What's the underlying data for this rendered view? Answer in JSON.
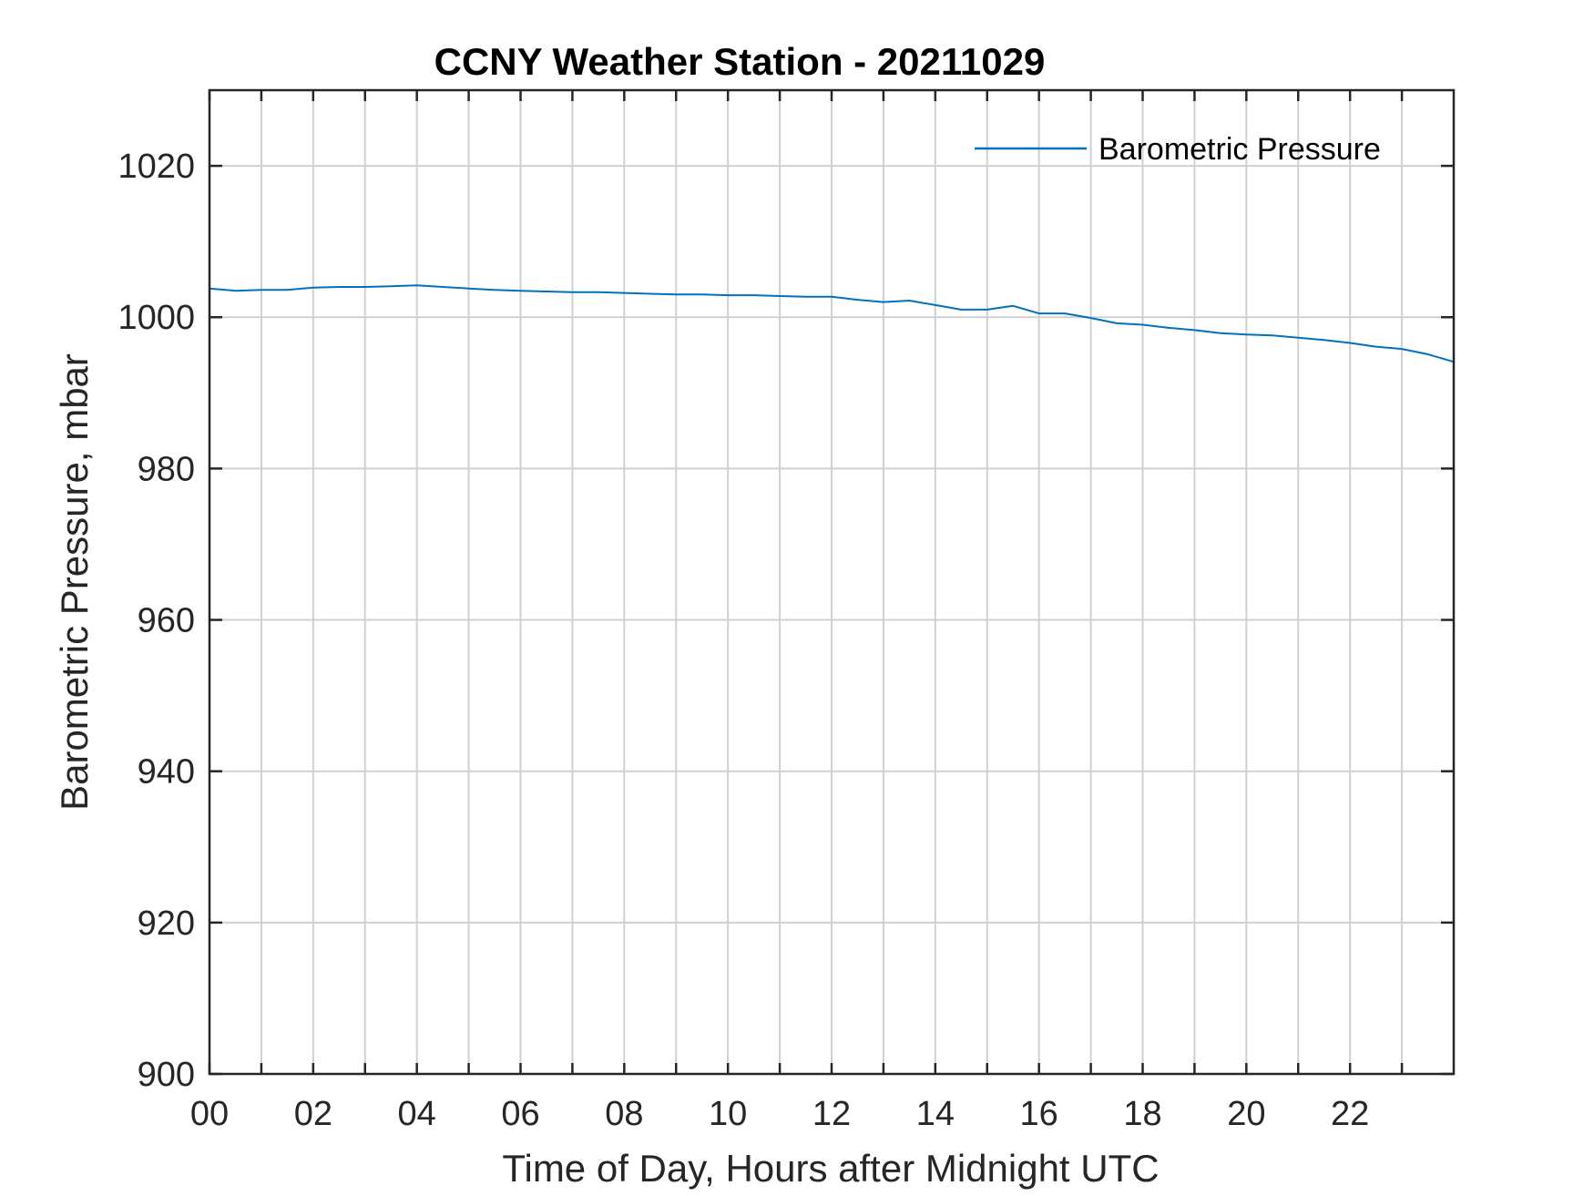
{
  "chart_data": {
    "type": "line",
    "title": "CCNY Weather Station - 20211029",
    "xlabel": "Time of Day, Hours after Midnight UTC",
    "ylabel": "Barometric Pressure, mbar",
    "xlim": [
      0,
      24
    ],
    "ylim": [
      900,
      1030
    ],
    "grid": true,
    "legend_position": "top-right",
    "line_color": "#0072BD",
    "x_ticks": [
      0,
      2,
      4,
      6,
      8,
      10,
      12,
      14,
      16,
      18,
      20,
      22
    ],
    "x_tick_labels": [
      "00",
      "02",
      "04",
      "06",
      "08",
      "10",
      "12",
      "14",
      "16",
      "18",
      "20",
      "22"
    ],
    "x_minor_gridlines": [
      1,
      3,
      5,
      7,
      9,
      11,
      13,
      15,
      17,
      19,
      21,
      23
    ],
    "y_ticks": [
      900,
      920,
      940,
      960,
      980,
      1000,
      1020
    ],
    "y_tick_labels": [
      "900",
      "920",
      "940",
      "960",
      "980",
      "1000",
      "1020"
    ],
    "series": [
      {
        "name": "Barometric Pressure",
        "x": [
          0,
          0.5,
          1,
          1.5,
          2,
          2.5,
          3,
          3.5,
          4,
          4.5,
          5,
          5.5,
          6,
          6.5,
          7,
          7.5,
          8,
          8.5,
          9,
          9.5,
          10,
          10.5,
          11,
          11.5,
          12,
          12.5,
          13,
          13.5,
          14,
          14.5,
          15,
          15.5,
          16,
          16.5,
          17,
          17.5,
          18,
          18.5,
          19,
          19.5,
          20,
          20.5,
          21,
          21.5,
          22,
          22.5,
          23,
          23.5,
          24
        ],
        "values": [
          1003.8,
          1003.5,
          1003.6,
          1003.6,
          1003.9,
          1004.0,
          1004.0,
          1004.1,
          1004.2,
          1004.0,
          1003.8,
          1003.6,
          1003.5,
          1003.4,
          1003.3,
          1003.3,
          1003.2,
          1003.1,
          1003.0,
          1003.0,
          1002.9,
          1002.9,
          1002.8,
          1002.7,
          1002.7,
          1002.3,
          1002.0,
          1002.2,
          1001.6,
          1001.0,
          1001.0,
          1001.5,
          1000.5,
          1000.5,
          999.9,
          999.2,
          999.0,
          998.6,
          998.3,
          997.9,
          997.7,
          997.6,
          997.3,
          997.0,
          996.6,
          996.1,
          995.8,
          995.1,
          994.1
        ]
      }
    ]
  }
}
